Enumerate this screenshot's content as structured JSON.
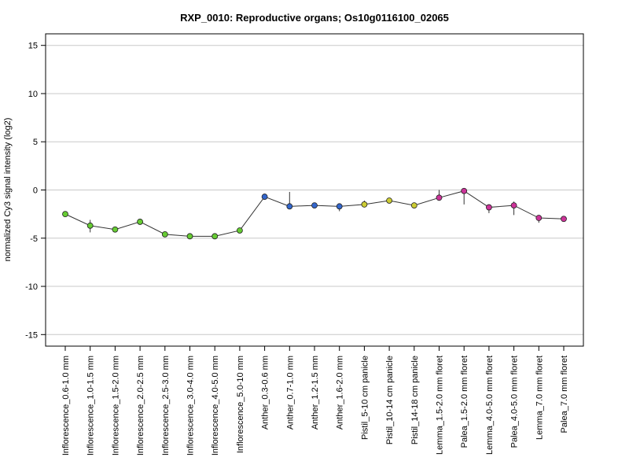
{
  "chart_data": {
    "type": "line",
    "title": "RXP_0010: Reproductive organs; Os10g0116100_02065",
    "xlabel": "",
    "ylabel": "normalized Cy3 signal intensity (log2)",
    "ylim": [
      -16.2,
      16.2
    ],
    "yticks": [
      -15,
      -10,
      -5,
      0,
      5,
      10,
      15
    ],
    "grid": "horizontal",
    "categories": [
      "Inflorescence_0.6-1.0 mm",
      "Inflorescence_1.0-1.5 mm",
      "Inflorescence_1.5-2.0 mm",
      "Inflorescence_2.0-2.5 mm",
      "Inflorescence_2.5-3.0 mm",
      "Inflorescence_3.0-4.0 mm",
      "Inflorescence_4.0-5.0 mm",
      "Inflorescence_5.0-10 mm",
      "Anther_0.3-0.6 mm",
      "Anther_0.7-1.0 mm",
      "Anther_1.2-1.5 mm",
      "Anther_1.6-2.0 mm",
      "Pistil_5-10 cm panicle",
      "Pistil_10-14 cm panicle",
      "Pistil_14-18 cm panicle",
      "Lemma_1.5-2.0 mm floret",
      "Palea_1.5-2.0 mm floret",
      "Lemma_4.0-5.0 mm floret",
      "Palea_4.0-5.0 mm floret",
      "Lemma_7.0 mm floret",
      "Palea_7.0 mm floret"
    ],
    "series": [
      {
        "values": [
          -2.5,
          -3.7,
          -4.1,
          -3.3,
          -4.6,
          -4.8,
          -4.8,
          -4.2,
          -0.7,
          -1.7,
          -1.6,
          -1.7,
          -1.5,
          -1.1,
          -1.6,
          -0.8,
          -0.1,
          -1.8,
          -1.6,
          -2.9,
          -3.0
        ],
        "err_low": [
          -2.5,
          -4.4,
          -4.1,
          -3.3,
          -4.6,
          -4.8,
          -4.8,
          -4.2,
          -0.7,
          -1.9,
          -1.6,
          -2.2,
          -1.8,
          -1.1,
          -1.9,
          -1.1,
          -1.5,
          -2.4,
          -2.6,
          -3.4,
          -3.0
        ],
        "err_high": [
          -2.5,
          -3.1,
          -4.1,
          -3.3,
          -4.6,
          -4.8,
          -4.8,
          -4.2,
          -0.7,
          -0.2,
          -1.6,
          -1.5,
          -1.1,
          -1.1,
          -1.3,
          0.0,
          -0.1,
          -1.5,
          -1.2,
          -2.6,
          -3.0
        ],
        "colors": [
          "#66cc33",
          "#66cc33",
          "#66cc33",
          "#66cc33",
          "#66cc33",
          "#66cc33",
          "#66cc33",
          "#66cc33",
          "#3366cc",
          "#3366cc",
          "#3366cc",
          "#3366cc",
          "#cccc33",
          "#cccc33",
          "#cccc33",
          "#cc3399",
          "#cc3399",
          "#cc3399",
          "#cc3399",
          "#cc3399",
          "#cc3399"
        ]
      }
    ]
  }
}
